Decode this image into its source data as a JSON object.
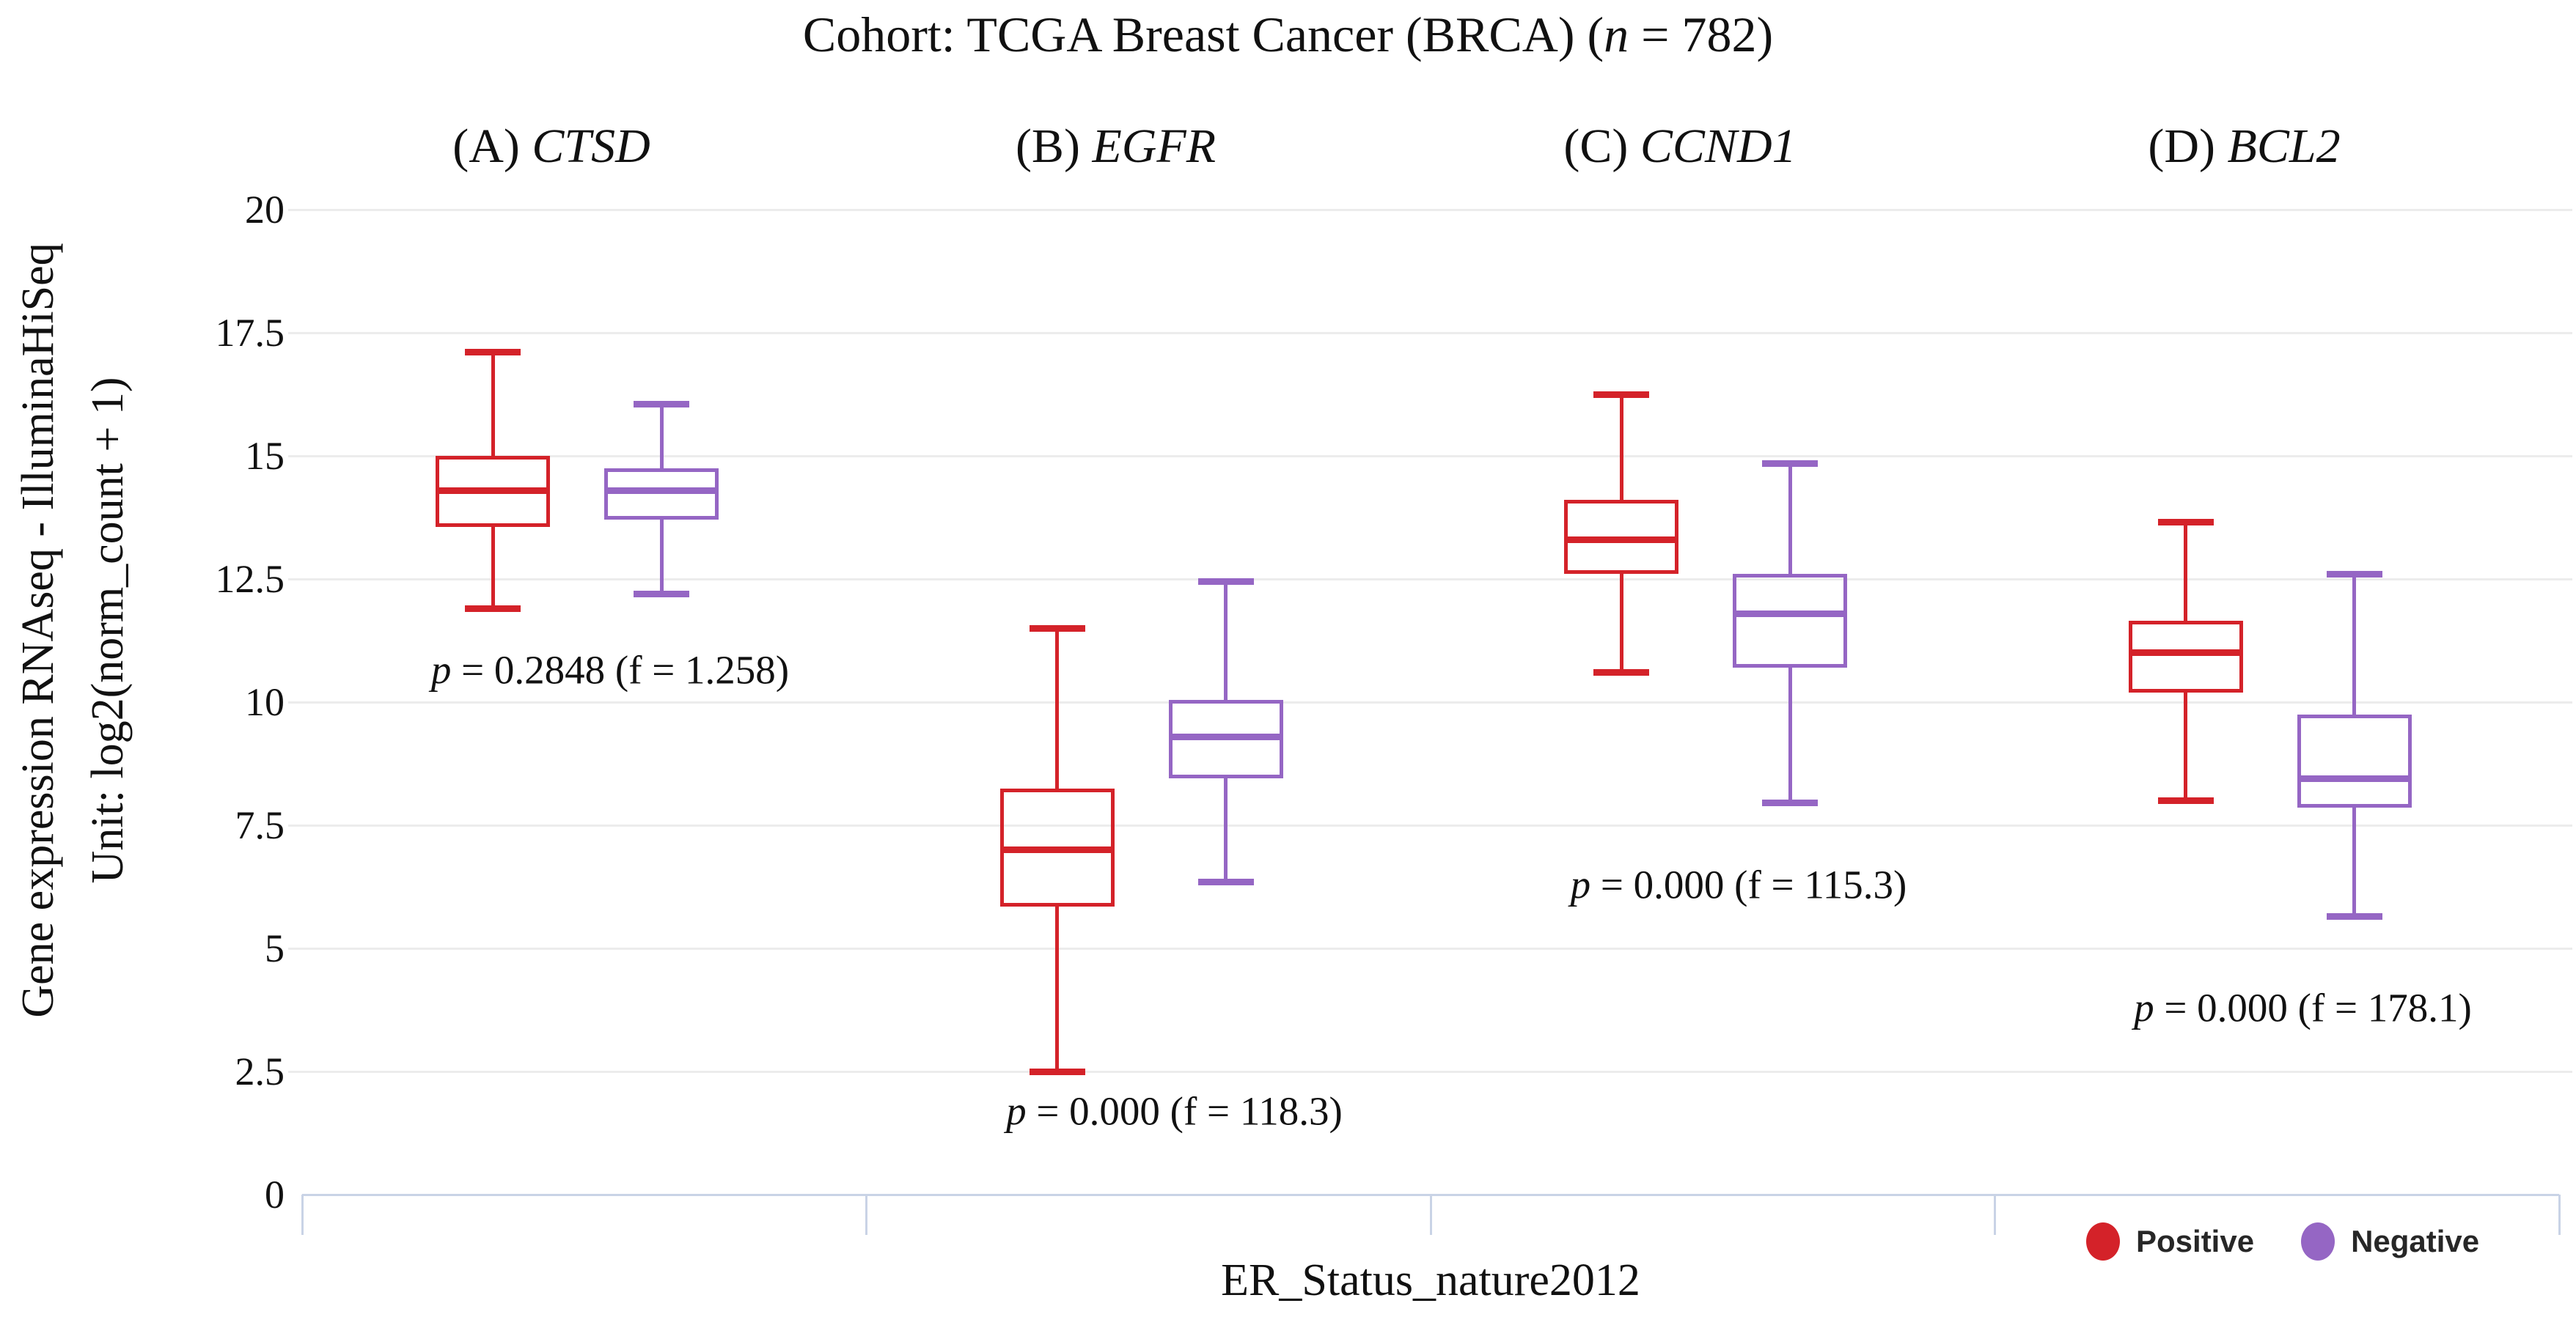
{
  "header": {
    "title_prefix": "Cohort: TCGA Breast Cancer (BRCA) (",
    "title_var": "n",
    "title_suffix": " = 782)"
  },
  "axes": {
    "y_label_line1": "Gene expression RNAseq - IlluminaHiSeq",
    "y_label_line2": "Unit: log2(norm_count + 1)",
    "x_label": "ER_Status_nature2012"
  },
  "legend": {
    "items": [
      {
        "label": "Positive",
        "color": "#d42229"
      },
      {
        "label": "Negative",
        "color": "#9566c4"
      }
    ]
  },
  "chart_data": {
    "type": "boxplot",
    "title": "Cohort: TCGA Breast Cancer (BRCA) (n = 782)",
    "xlabel": "ER_Status_nature2012",
    "ylabel": "Gene expression RNAseq - IlluminaHiSeq  Unit: log2(norm_count + 1)",
    "ylim": [
      0,
      20
    ],
    "ytick_values": [
      0,
      2.5,
      5,
      7.5,
      10,
      12.5,
      15,
      17.5,
      20
    ],
    "ytick_labels": [
      "0",
      "2.5",
      "5",
      "7.5",
      "10",
      "12.5",
      "15",
      "17.5",
      "20"
    ],
    "grid": "horizontal",
    "legend_position": "bottom-right",
    "groups": [
      "Positive",
      "Negative"
    ],
    "series_colors": {
      "Positive": "#d42229",
      "Negative": "#9566c4"
    },
    "panels": [
      {
        "panel_label": "(A)",
        "gene": "CTSD",
        "p_var": "p",
        "p_rest": " = 0.2848 (f = 1.258)",
        "p_value": 0.2848,
        "f_value": 1.258,
        "annotation_y": 10.65,
        "boxes": [
          {
            "group": "Positive",
            "whisker_low": 11.9,
            "q1": 13.55,
            "median": 14.3,
            "q3": 15.0,
            "whisker_high": 17.1
          },
          {
            "group": "Negative",
            "whisker_low": 12.2,
            "q1": 13.7,
            "median": 14.3,
            "q3": 14.75,
            "whisker_high": 16.05
          }
        ]
      },
      {
        "panel_label": "(B)",
        "gene": "EGFR",
        "p_var": "p",
        "p_rest": " = 0.000 (f = 118.3)",
        "p_value": 0.0,
        "f_value": 118.3,
        "annotation_y": 1.7,
        "boxes": [
          {
            "group": "Positive",
            "whisker_low": 2.5,
            "q1": 5.85,
            "median": 7.0,
            "q3": 8.25,
            "whisker_high": 11.5
          },
          {
            "group": "Negative",
            "whisker_low": 6.35,
            "q1": 8.45,
            "median": 9.3,
            "q3": 10.05,
            "whisker_high": 12.45
          }
        ]
      },
      {
        "panel_label": "(C)",
        "gene": "CCND1",
        "p_var": "p",
        "p_rest": " = 0.000 (f = 115.3)",
        "p_value": 0.0,
        "f_value": 115.3,
        "annotation_y": 6.3,
        "boxes": [
          {
            "group": "Positive",
            "whisker_low": 10.6,
            "q1": 12.6,
            "median": 13.3,
            "q3": 14.1,
            "whisker_high": 16.25
          },
          {
            "group": "Negative",
            "whisker_low": 7.95,
            "q1": 10.7,
            "median": 11.8,
            "q3": 12.6,
            "whisker_high": 14.85
          }
        ]
      },
      {
        "panel_label": "(D)",
        "gene": "BCL2",
        "p_var": "p",
        "p_rest": " = 0.000 (f = 178.1)",
        "p_value": 0.0,
        "f_value": 178.1,
        "annotation_y": 3.8,
        "boxes": [
          {
            "group": "Positive",
            "whisker_low": 8.0,
            "q1": 10.2,
            "median": 11.0,
            "q3": 11.65,
            "whisker_high": 13.65
          },
          {
            "group": "Negative",
            "whisker_low": 5.65,
            "q1": 7.85,
            "median": 8.45,
            "q3": 9.75,
            "whisker_high": 12.6
          }
        ]
      }
    ]
  }
}
